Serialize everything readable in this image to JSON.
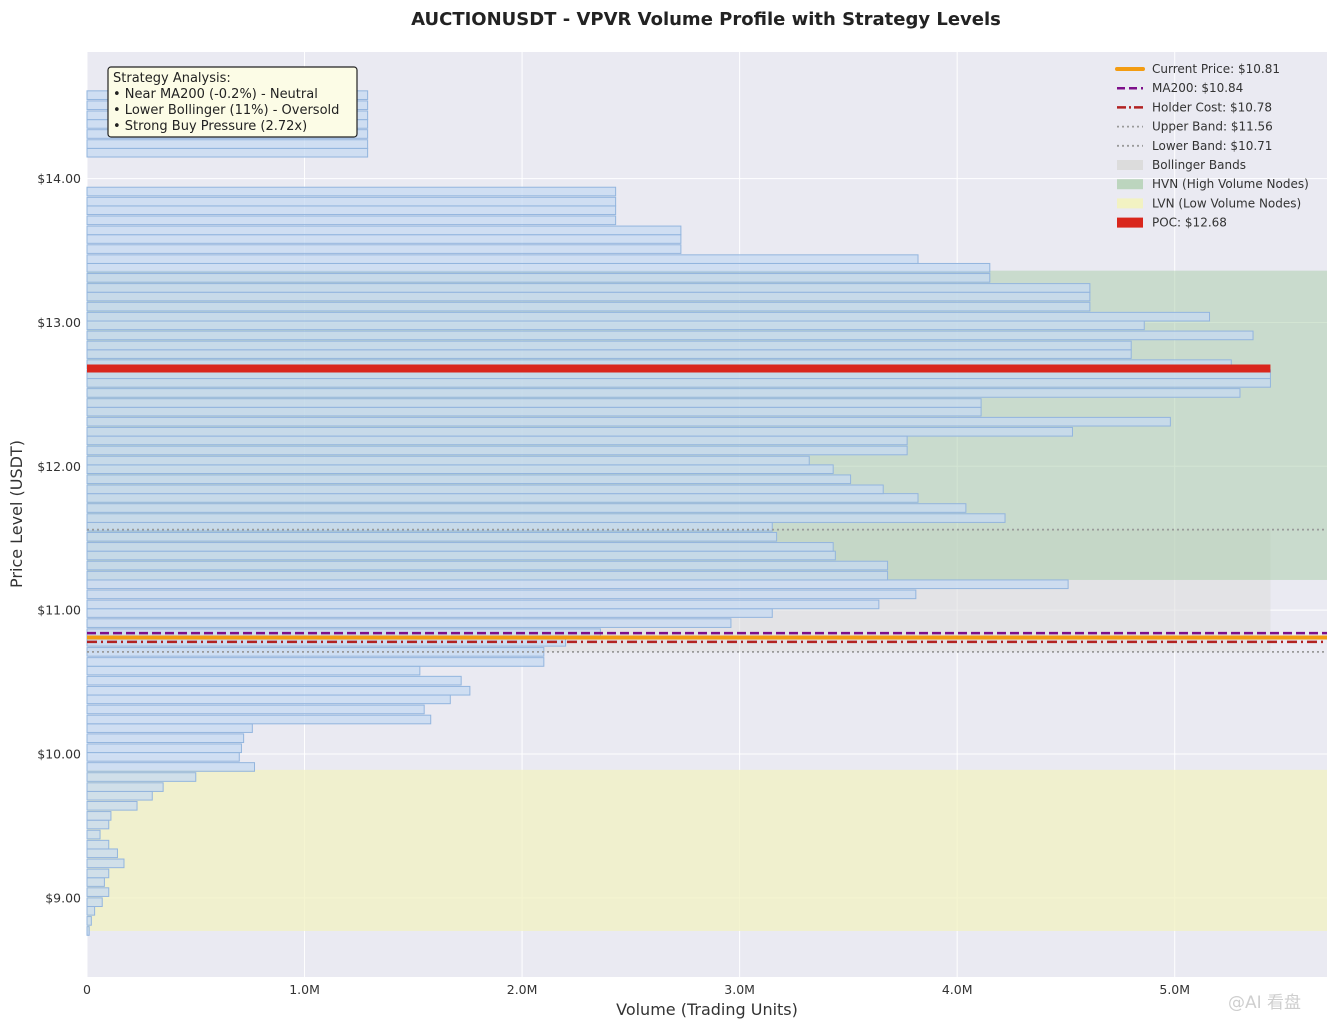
{
  "chart_data": {
    "type": "bar",
    "orientation": "horizontal",
    "title": "AUCTIONUSDT - VPVR Volume Profile with Strategy Levels",
    "xlabel": "Volume (Trading Units)",
    "ylabel": "Price Level (USDT)",
    "xlim": [
      0,
      5700000
    ],
    "ylim": [
      8.45,
      14.88
    ],
    "bin_size": 0.0667,
    "x_ticks": [
      {
        "value": 0,
        "label": "0"
      },
      {
        "value": 1000000,
        "label": "1.0M"
      },
      {
        "value": 2000000,
        "label": "2.0M"
      },
      {
        "value": 3000000,
        "label": "3.0M"
      },
      {
        "value": 4000000,
        "label": "4.0M"
      },
      {
        "value": 5000000,
        "label": "5.0M"
      }
    ],
    "y_ticks": [
      {
        "value": 9.0,
        "label": "$9.00"
      },
      {
        "value": 10.0,
        "label": "$10.00"
      },
      {
        "value": 11.0,
        "label": "$11.00"
      },
      {
        "value": 12.0,
        "label": "$12.00"
      },
      {
        "value": 13.0,
        "label": "$13.00"
      },
      {
        "value": 14.0,
        "label": "$14.00"
      }
    ],
    "grid": true,
    "legend_position": "top-right",
    "colors": {
      "bar_fill": "#c6daf2",
      "bar_edge": "#93b5de",
      "plot_bg": "#eaeaf2",
      "current_price": "#f39c12",
      "ma200": "#7d0f8a",
      "holder_cost": "#b22222",
      "bands": "#9a9a9a",
      "bollinger_fill": "#dcdcdc",
      "hvn_fill": "#a8cca8",
      "lvn_fill": "#f2f2c2",
      "poc": "#d9261c"
    },
    "profile": {
      "price_levels": [
        8.77,
        8.84,
        8.91,
        8.97,
        9.04,
        9.11,
        9.17,
        9.24,
        9.31,
        9.37,
        9.44,
        9.51,
        9.57,
        9.64,
        9.71,
        9.77,
        9.84,
        9.91,
        9.98,
        10.04,
        10.11,
        10.18,
        10.24,
        10.31,
        10.38,
        10.44,
        10.51,
        10.58,
        10.64,
        10.71,
        10.78,
        10.84,
        10.91,
        10.98,
        11.04,
        11.11,
        11.18,
        11.24,
        11.31,
        11.38,
        11.44,
        11.51,
        11.58,
        11.64,
        11.71,
        11.78,
        11.84,
        11.91,
        11.98,
        12.04,
        12.11,
        12.18,
        12.24,
        12.31,
        12.38,
        12.44,
        12.51,
        12.58,
        12.64,
        12.71,
        12.78,
        12.84,
        12.91,
        12.98,
        13.04,
        13.11,
        13.18,
        13.24,
        13.31,
        13.38,
        13.44,
        13.51,
        13.58,
        13.64,
        13.71,
        13.78,
        13.84,
        13.91,
        13.98,
        14.04,
        14.11,
        14.18,
        14.24,
        14.31,
        14.38,
        14.44,
        14.51,
        14.58
      ],
      "volumes": [
        10000,
        20000,
        35000,
        70000,
        100000,
        80000,
        100000,
        170000,
        140000,
        100000,
        60000,
        100000,
        110000,
        230000,
        300000,
        350000,
        500000,
        770000,
        700000,
        710000,
        720000,
        760000,
        1580000,
        1550000,
        1670000,
        1760000,
        1720000,
        1530000,
        2100000,
        2100000,
        2200000,
        2360000,
        2960000,
        3150000,
        3640000,
        3810000,
        4510000,
        3680000,
        3680000,
        3440000,
        3430000,
        3170000,
        3150000,
        4220000,
        4040000,
        3820000,
        3660000,
        3510000,
        3430000,
        3320000,
        3770000,
        3770000,
        4530000,
        4980000,
        4110000,
        4110000,
        5300000,
        5440000,
        5440000,
        5260000,
        4800000,
        4800000,
        5360000,
        4860000,
        5160000,
        4610000,
        4610000,
        4610000,
        4150000,
        4150000,
        3820000,
        2730000,
        2730000,
        2730000,
        2430000,
        2430000,
        2430000,
        2430000,
        0,
        0,
        0,
        1290000,
        1290000,
        1290000,
        1290000,
        1290000,
        1290000,
        1290000
      ]
    },
    "levels": {
      "current_price": 10.81,
      "ma200": 10.84,
      "holder_cost": 10.78,
      "upper_band": 11.56,
      "lower_band": 10.71,
      "poc": 12.68
    },
    "zones": {
      "hvn": [
        11.21,
        13.36
      ],
      "lvn": [
        8.77,
        9.89
      ]
    },
    "legend": [
      {
        "key": "current",
        "label": "Current Price: $10.81"
      },
      {
        "key": "ma200",
        "label": "MA200: $10.84"
      },
      {
        "key": "holder",
        "label": "Holder Cost: $10.78"
      },
      {
        "key": "upper",
        "label": "Upper Band: $11.56"
      },
      {
        "key": "lower",
        "label": "Lower Band: $10.71"
      },
      {
        "key": "bollinger",
        "label": "Bollinger Bands"
      },
      {
        "key": "hvn",
        "label": "HVN (High Volume Nodes)"
      },
      {
        "key": "lvn",
        "label": "LVN (Low Volume Nodes)"
      },
      {
        "key": "poc",
        "label": "POC: $12.68"
      }
    ],
    "annotation": {
      "lines": [
        "Strategy Analysis:",
        "• Near MA200 (-0.2%) - Neutral",
        "• Lower Bollinger (11%) - Oversold",
        "• Strong Buy Pressure (2.72x)"
      ]
    }
  },
  "watermark": "@AI 看盘"
}
